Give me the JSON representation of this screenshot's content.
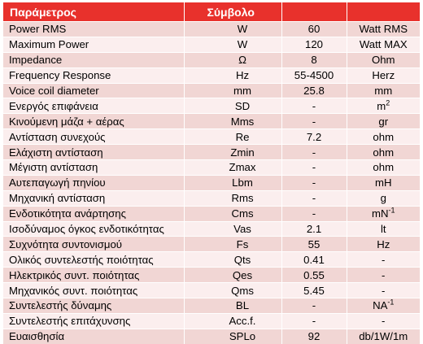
{
  "table": {
    "header": {
      "parameter": "Παράμετρος",
      "symbol": "Σύμβολο",
      "value": "",
      "unit": ""
    },
    "rows": [
      {
        "name": "Power RMS",
        "symbol": "W",
        "value": "60",
        "unit": "Watt RMS",
        "unit_sup": ""
      },
      {
        "name": "Maximum Power",
        "symbol": "W",
        "value": "120",
        "unit": "Watt MAX",
        "unit_sup": ""
      },
      {
        "name": "Impedance",
        "symbol": "Ω",
        "value": "8",
        "unit": "Ohm",
        "unit_sup": ""
      },
      {
        "name": "Frequency Response",
        "symbol": "Hz",
        "value": "55-4500",
        "unit": "Herz",
        "unit_sup": ""
      },
      {
        "name": "Voice coil diameter",
        "symbol": "mm",
        "value": "25.8",
        "unit": "mm",
        "unit_sup": ""
      },
      {
        "name": "Ενεργός επιφάνεια",
        "symbol": "SD",
        "value": "-",
        "unit": "m",
        "unit_sup": "2"
      },
      {
        "name": "Κινούμενη μάζα + αέρας",
        "symbol": "Mms",
        "value": "-",
        "unit": "gr",
        "unit_sup": ""
      },
      {
        "name": "Αντίσταση συνεχούς",
        "symbol": "Re",
        "value": "7.2",
        "unit": "ohm",
        "unit_sup": ""
      },
      {
        "name": "Ελάχιστη αντίσταση",
        "symbol": "Zmin",
        "value": "-",
        "unit": "ohm",
        "unit_sup": ""
      },
      {
        "name": "Μέγιστη αντίσταση",
        "symbol": "Zmax",
        "value": "-",
        "unit": "ohm",
        "unit_sup": ""
      },
      {
        "name": "Αυτεπαγωγή πηνίου",
        "symbol": "Lbm",
        "value": "-",
        "unit": "mH",
        "unit_sup": ""
      },
      {
        "name": "Μηχανική αντίσταση",
        "symbol": "Rms",
        "value": "-",
        "unit": "g",
        "unit_sup": ""
      },
      {
        "name": "Ενδοτικότητα ανάρτησης",
        "symbol": "Cms",
        "value": "-",
        "unit": "mN",
        "unit_sup": "-1"
      },
      {
        "name": "Ισοδύναμος όγκος ενδοτικότητας",
        "symbol": "Vas",
        "value": "2.1",
        "unit": "lt",
        "unit_sup": ""
      },
      {
        "name": "Συχνότητα συντονισμού",
        "symbol": "Fs",
        "value": "55",
        "unit": "Hz",
        "unit_sup": ""
      },
      {
        "name": "Ολικός συντελεστής ποιότητας",
        "symbol": "Qts",
        "value": "0.41",
        "unit": "-",
        "unit_sup": ""
      },
      {
        "name": "Ηλεκτρικός συντ. ποιότητας",
        "symbol": "Qes",
        "value": "0.55",
        "unit": "-",
        "unit_sup": ""
      },
      {
        "name": "Μηχανικός συντ. ποιότητας",
        "symbol": "Qms",
        "value": "5.45",
        "unit": "-",
        "unit_sup": ""
      },
      {
        "name": "Συντελεστής δύναμης",
        "symbol": "BL",
        "value": "-",
        "unit": "NA",
        "unit_sup": "-1"
      },
      {
        "name": "Συντελεστής επιτάχυνσης",
        "symbol": "Acc.f.",
        "value": "-",
        "unit": "-",
        "unit_sup": ""
      },
      {
        "name": "Ευαισθησία",
        "symbol": "SPLo",
        "value": "92",
        "unit": "db/1W/1m",
        "unit_sup": ""
      }
    ]
  }
}
